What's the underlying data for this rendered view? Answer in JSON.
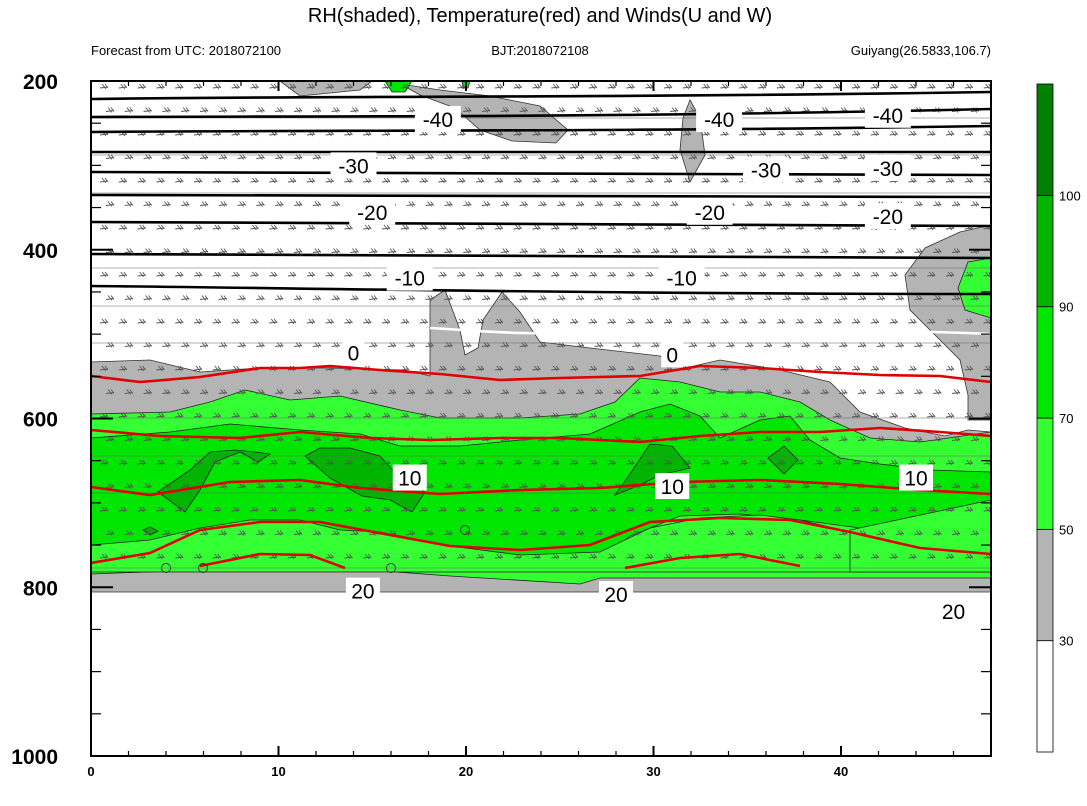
{
  "chart_data": {
    "type": "heatmap",
    "title": "RH(shaded), Temperature(red) and Winds(U and W)",
    "subtitle_left": "Forecast from UTC: 2018072100",
    "subtitle_center": "BJT:2018072108",
    "subtitle_right": "Guiyang(26.5833,106.7)",
    "xlim": [
      0,
      48
    ],
    "x_ticks": [
      0,
      10,
      20,
      30,
      40
    ],
    "ylim": [
      200,
      1000
    ],
    "y_ticks": [
      200,
      400,
      600,
      800,
      1000
    ],
    "y_inverted": true,
    "colorbar": {
      "levels": [
        30,
        50,
        70,
        90,
        100
      ],
      "colors": [
        "#ffffff",
        "#b4b4b4",
        "#33ff33",
        "#00e600",
        "#00b400",
        "#008000"
      ]
    },
    "temperature_labels": [
      {
        "text": "-40",
        "x": 18.5,
        "p": 245
      },
      {
        "text": "-40",
        "x": 33.5,
        "p": 245
      },
      {
        "text": "-40",
        "x": 42.5,
        "p": 240
      },
      {
        "text": "-30",
        "x": 14,
        "p": 300
      },
      {
        "text": "-30",
        "x": 36,
        "p": 305
      },
      {
        "text": "-30",
        "x": 42.5,
        "p": 303
      },
      {
        "text": "-20",
        "x": 15,
        "p": 355
      },
      {
        "text": "-20",
        "x": 33,
        "p": 355
      },
      {
        "text": "-20",
        "x": 42.5,
        "p": 360
      },
      {
        "text": "-10",
        "x": 17,
        "p": 433
      },
      {
        "text": "-10",
        "x": 31.5,
        "p": 433
      },
      {
        "text": "0",
        "x": 14,
        "p": 522
      },
      {
        "text": "0",
        "x": 31,
        "p": 524
      },
      {
        "text": "10",
        "x": 17,
        "p": 670
      },
      {
        "text": "10",
        "x": 31,
        "p": 680
      },
      {
        "text": "10",
        "x": 44,
        "p": 670
      },
      {
        "text": "20",
        "x": 14.5,
        "p": 804
      },
      {
        "text": "20",
        "x": 28,
        "p": 808
      },
      {
        "text": "20",
        "x": 46,
        "p": 828
      }
    ]
  }
}
